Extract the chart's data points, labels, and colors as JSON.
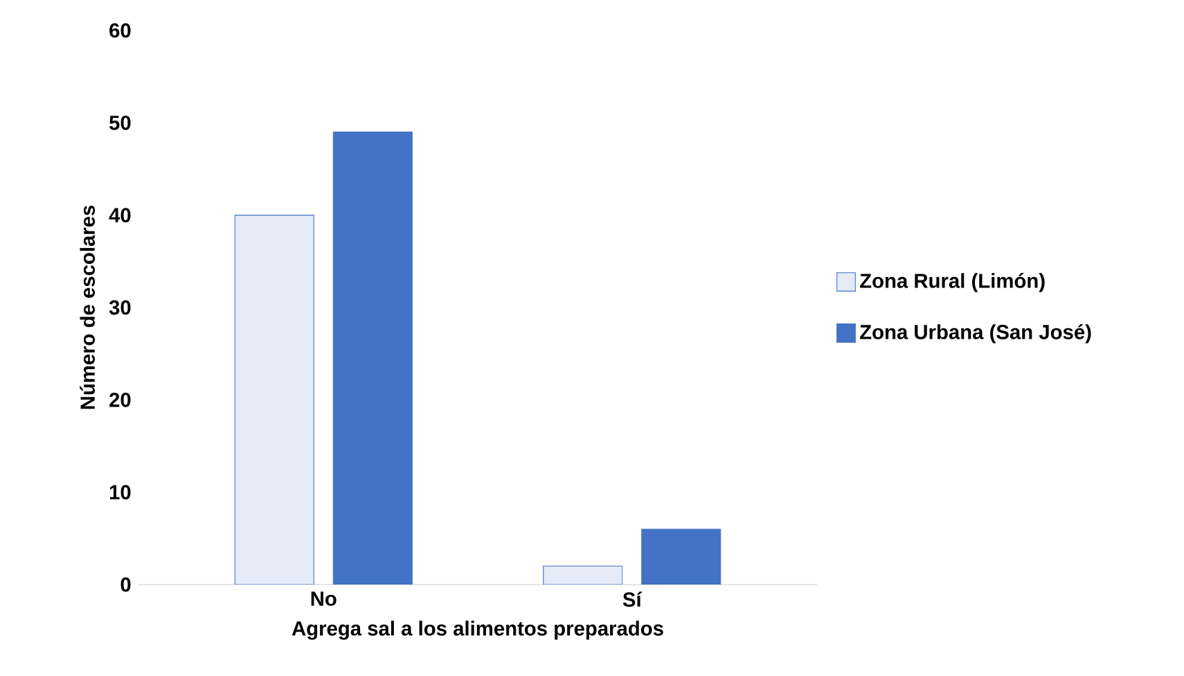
{
  "chart_data": {
    "type": "bar",
    "xlabel": "Agrega sal a los alimentos preparados",
    "ylabel": "Número de escolares",
    "categories": [
      "No",
      "Sí"
    ],
    "series": [
      {
        "name": "Zona Rural (Limón)",
        "color": "#e4eaf6",
        "values": [
          40,
          2
        ]
      },
      {
        "name": "Zona Urbana (San José)",
        "color": "#4472c4",
        "values": [
          49,
          6
        ]
      }
    ],
    "ylim": [
      0,
      60
    ],
    "yticks": [
      0,
      10,
      20,
      30,
      40,
      50,
      60
    ],
    "grid": false,
    "legend": "right"
  }
}
